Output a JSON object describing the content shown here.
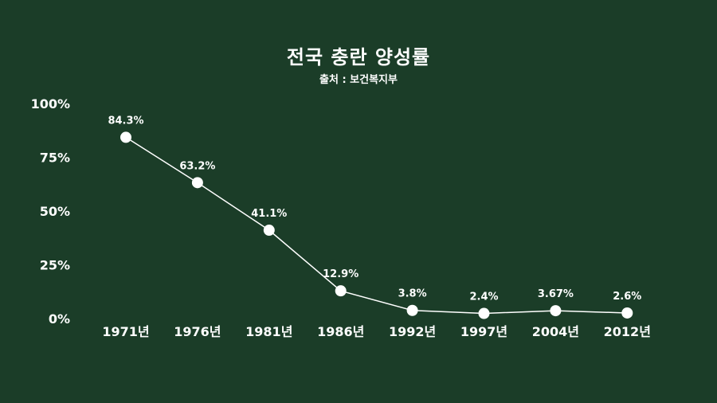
{
  "chart_data": {
    "type": "line",
    "title": "전국 충란 양성률",
    "subtitle": "출처 : 보건복지부",
    "categories": [
      "1971년",
      "1976년",
      "1981년",
      "1986년",
      "1992년",
      "1997년",
      "2004년",
      "2012년"
    ],
    "values": [
      84.3,
      63.2,
      41.1,
      12.9,
      3.8,
      2.4,
      3.67,
      2.6
    ],
    "data_labels": [
      "84.3%",
      "63.2%",
      "41.1%",
      "12.9%",
      "3.8%",
      "2.4%",
      "3.67%",
      "2.6%"
    ],
    "y_ticks": [
      {
        "value": 100,
        "label": "100%"
      },
      {
        "value": 75,
        "label": "75%"
      },
      {
        "value": 50,
        "label": "50%"
      },
      {
        "value": 25,
        "label": "25%"
      },
      {
        "value": 0,
        "label": "0%"
      }
    ],
    "ylim": [
      0,
      100
    ],
    "grid": false,
    "colors": {
      "background": "#1b3d28",
      "line": "#ffffff",
      "marker": "#ffffff",
      "text": "#ffffff"
    }
  }
}
